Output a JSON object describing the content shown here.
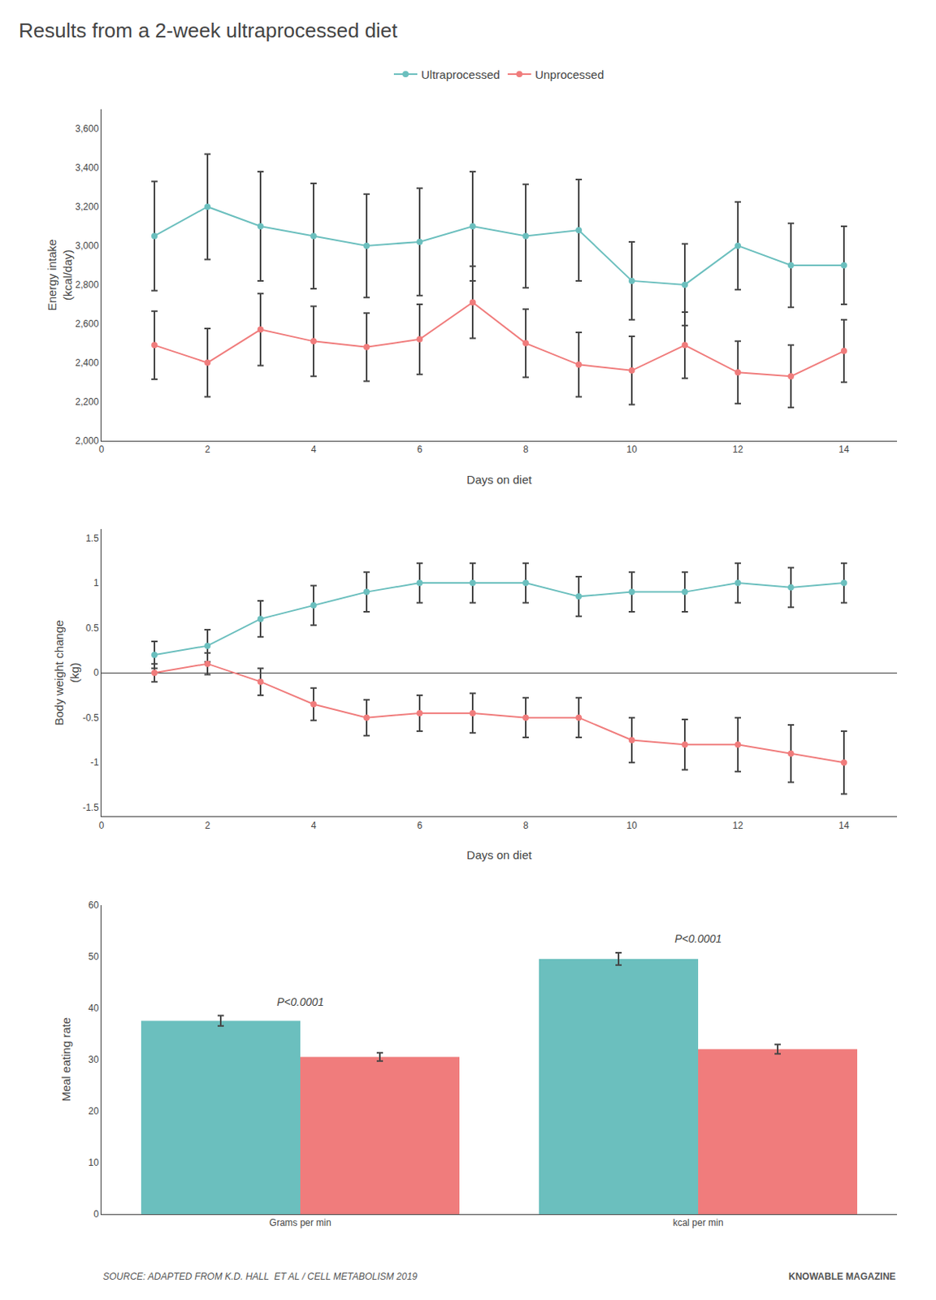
{
  "title": "Results from a 2-week ultraprocessed diet",
  "source": "SOURCE: ADAPTED FROM K.D. HALL  ET AL / CELL METABOLISM 2019",
  "credit": "KNOWABLE MAGAZINE",
  "chart_data": [
    {
      "type": "line",
      "xlabel": "Days on diet",
      "ylabel": "Energy intake\n(kcal/day)",
      "marker": "circle",
      "legend": "top",
      "grid": false,
      "x": [
        1,
        2,
        3,
        4,
        5,
        6,
        7,
        8,
        9,
        10,
        11,
        12,
        13,
        14
      ],
      "series": [
        {
          "name": "Ultraprocessed",
          "color": "#6BBFBE",
          "values": [
            3050,
            3200,
            3100,
            3050,
            3000,
            3020,
            3100,
            3050,
            3080,
            2820,
            2800,
            3000,
            2900,
            2900
          ],
          "errors": [
            280,
            270,
            280,
            270,
            265,
            275,
            280,
            265,
            260,
            200,
            210,
            225,
            215,
            200
          ]
        },
        {
          "name": "Unprocessed",
          "color": "#F07C7C",
          "values": [
            2490,
            2400,
            2570,
            2510,
            2480,
            2520,
            2710,
            2500,
            2390,
            2360,
            2490,
            2350,
            2330,
            2460
          ],
          "errors": [
            175,
            175,
            185,
            180,
            175,
            180,
            185,
            175,
            165,
            175,
            170,
            160,
            160,
            160
          ]
        }
      ],
      "xlim": [
        0,
        15
      ],
      "xticks": [
        0,
        2,
        4,
        6,
        8,
        10,
        12,
        14
      ],
      "ylim": [
        2000,
        3700
      ],
      "yticks": [
        {
          "value": 2000,
          "label": "2,000"
        },
        {
          "value": 2200,
          "label": "2,200"
        },
        {
          "value": 2400,
          "label": "2,400"
        },
        {
          "value": 2600,
          "label": "2,600"
        },
        {
          "value": 2800,
          "label": "2,800"
        },
        {
          "value": 3000,
          "label": "3,000"
        },
        {
          "value": 3200,
          "label": "3,200"
        },
        {
          "value": 3400,
          "label": "3,400"
        },
        {
          "value": 3600,
          "label": "3,600"
        }
      ]
    },
    {
      "type": "line",
      "xlabel": "Days on diet",
      "ylabel": "Body weight change\n(kg)",
      "marker": "circle",
      "grid": false,
      "x": [
        1,
        2,
        3,
        4,
        5,
        6,
        7,
        8,
        9,
        10,
        11,
        12,
        13,
        14
      ],
      "series": [
        {
          "name": "Ultraprocessed",
          "color": "#6BBFBE",
          "values": [
            0.2,
            0.3,
            0.6,
            0.75,
            0.9,
            1.0,
            1.0,
            1.0,
            0.85,
            0.9,
            0.9,
            1.0,
            0.95,
            1.0
          ],
          "errors": [
            0.15,
            0.18,
            0.2,
            0.22,
            0.22,
            0.22,
            0.22,
            0.22,
            0.22,
            0.22,
            0.22,
            0.22,
            0.22,
            0.22
          ]
        },
        {
          "name": "Unprocessed",
          "color": "#F07C7C",
          "values": [
            0.0,
            0.1,
            -0.1,
            -0.35,
            -0.5,
            -0.45,
            -0.45,
            -0.5,
            -0.5,
            -0.75,
            -0.8,
            -0.8,
            -0.9,
            -1.0
          ],
          "errors": [
            0.1,
            0.12,
            0.15,
            0.18,
            0.2,
            0.2,
            0.22,
            0.22,
            0.22,
            0.25,
            0.28,
            0.3,
            0.32,
            0.35
          ]
        }
      ],
      "xlim": [
        0,
        15
      ],
      "xticks": [
        0,
        2,
        4,
        6,
        8,
        10,
        12,
        14
      ],
      "ylim": [
        -1.6,
        1.6
      ],
      "yticks": [
        -1.5,
        -1,
        -0.5,
        0,
        0.5,
        1,
        1.5
      ]
    },
    {
      "type": "bar",
      "ylabel": "Meal eating rate",
      "grid": false,
      "categories": [
        "Grams per min",
        "kcal per min"
      ],
      "series": [
        {
          "name": "Ultraprocessed",
          "color": "#6BBFBE",
          "values": [
            37.5,
            49.5
          ],
          "errors": [
            1.0,
            1.2
          ]
        },
        {
          "name": "Unprocessed",
          "color": "#F07C7C",
          "values": [
            30.5,
            32.0
          ],
          "errors": [
            0.8,
            0.9
          ]
        }
      ],
      "ylim": [
        0,
        60
      ],
      "yticks": [
        0,
        10,
        20,
        30,
        40,
        50,
        60
      ],
      "annotations": [
        {
          "category": "Grams per min",
          "text": "P<0.0001"
        },
        {
          "category": "kcal per min",
          "text": "P<0.0001"
        }
      ]
    }
  ]
}
